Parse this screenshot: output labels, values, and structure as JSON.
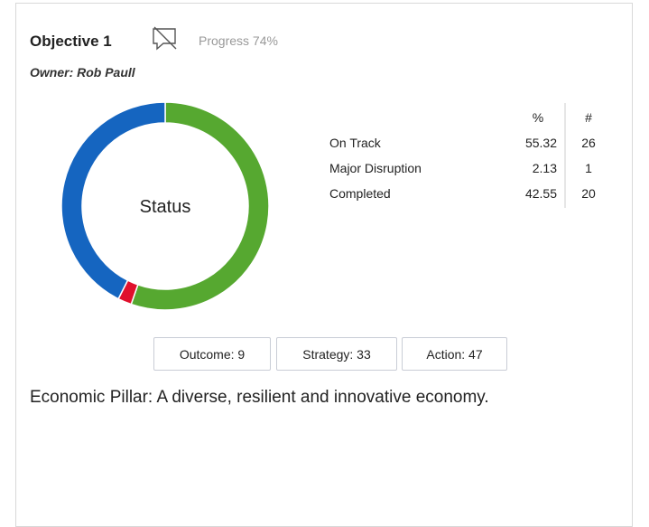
{
  "header": {
    "title": "Objective 1",
    "progress": "Progress 74%",
    "owner": "Owner: Rob Paull"
  },
  "chart_data": {
    "type": "pie",
    "center_label": "Status",
    "columns": [
      "%",
      "#"
    ],
    "categories": [
      "On Track",
      "Major Disruption",
      "Completed"
    ],
    "values": [
      55.32,
      2.13,
      42.55
    ],
    "counts": [
      26,
      1,
      20
    ],
    "colors": [
      "#56a830",
      "#e0102c",
      "#1565c0"
    ]
  },
  "buttons": [
    "Outcome: 9",
    "Strategy: 33",
    "Action: 47"
  ],
  "description": "Economic Pillar: A diverse, resilient and innovative economy."
}
